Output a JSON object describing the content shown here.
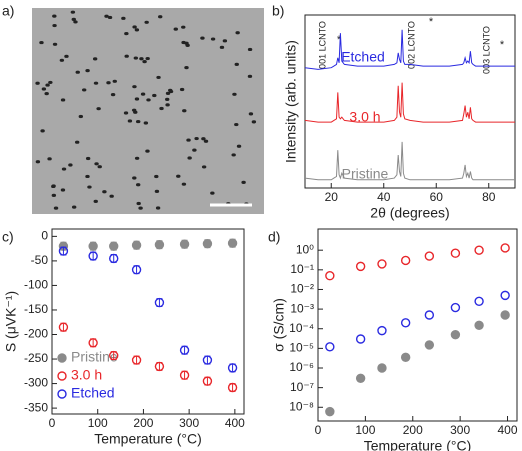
{
  "image_panel": {
    "label": "a)"
  },
  "chart_data": [
    {
      "type": "line",
      "label": "b)",
      "xlabel": "2θ (degrees)",
      "ylabel": "Intensity (arb. units)",
      "xlim": [
        10,
        90
      ],
      "ylim": [
        0,
        10.5
      ],
      "xticks": [
        20,
        40,
        60,
        80
      ],
      "annotations": [
        "001 LCNTO",
        "*",
        "002 LCNTO",
        "*",
        "003 LCNTO",
        "*"
      ],
      "x": [
        10,
        15,
        20,
        21,
        22,
        22.5,
        23,
        23.5,
        24,
        25,
        30,
        35,
        40,
        44,
        45,
        45.5,
        46,
        46.5,
        47,
        47.5,
        48,
        50,
        55,
        60,
        65,
        70,
        70.5,
        71,
        71.5,
        72,
        72.5,
        73,
        73.5,
        74,
        75,
        80,
        85,
        90
      ],
      "series": [
        {
          "name": "Etched",
          "color": "#2a2ae0",
          "values": [
            7.3,
            7.2,
            7.3,
            7.4,
            7.5,
            7.9,
            7.6,
            9.4,
            7.7,
            7.5,
            7.4,
            7.4,
            7.4,
            7.5,
            7.6,
            8.2,
            7.8,
            7.6,
            9.6,
            7.7,
            7.5,
            7.5,
            7.4,
            7.4,
            7.4,
            7.5,
            7.6,
            7.9,
            7.6,
            7.7,
            7.6,
            8.3,
            7.6,
            7.5,
            7.4,
            7.4,
            7.4,
            7.4
          ]
        },
        {
          "name": "3.0 h",
          "color": "#e8262a",
          "values": [
            4.1,
            4.0,
            4.0,
            4.1,
            4.2,
            5.8,
            4.3,
            4.2,
            4.3,
            4.1,
            4.0,
            4.0,
            4.0,
            4.1,
            4.3,
            6.2,
            4.6,
            4.3,
            6.4,
            4.5,
            4.2,
            4.1,
            4.0,
            4.0,
            4.0,
            4.1,
            4.5,
            5.0,
            4.3,
            4.6,
            4.2,
            4.9,
            4.2,
            4.1,
            4.0,
            4.0,
            4.0,
            4.0
          ]
        },
        {
          "name": "Pristine",
          "color": "#8a8a8a",
          "values": [
            0.6,
            0.5,
            0.5,
            0.6,
            0.7,
            2.3,
            0.8,
            0.6,
            0.9,
            0.6,
            0.5,
            0.5,
            0.5,
            0.6,
            0.8,
            2.0,
            1.0,
            0.7,
            2.8,
            0.9,
            0.6,
            0.5,
            0.5,
            0.5,
            0.5,
            0.6,
            0.9,
            1.4,
            0.7,
            0.9,
            0.6,
            1.0,
            0.6,
            0.5,
            0.5,
            0.5,
            0.5,
            0.5
          ]
        }
      ]
    },
    {
      "type": "scatter",
      "label": "c)",
      "xlabel": "Temperature (°C)",
      "ylabel": "S (μVK⁻¹)",
      "xlim": [
        0,
        420
      ],
      "ylim": [
        -362,
        15
      ],
      "xticks": [
        0,
        100,
        200,
        300,
        400
      ],
      "yticks": [
        0,
        -50,
        -100,
        -150,
        -200,
        -250,
        -300,
        -350
      ],
      "legend": "lower left",
      "x": [
        25,
        90,
        135,
        185,
        235,
        290,
        340,
        395
      ],
      "series": [
        {
          "name": "Pristine",
          "color": "#8a8a8a",
          "filled": true,
          "values": [
            -20,
            -20,
            -20,
            -18,
            -17,
            -16,
            -15,
            -14
          ],
          "errors": [
            8,
            8,
            8,
            8,
            8,
            8,
            8,
            8
          ]
        },
        {
          "name": "3.0 h",
          "color": "#e8262a",
          "filled": false,
          "values": [
            -185,
            -217,
            -243,
            -252,
            -265,
            -283,
            -295,
            -308
          ],
          "errors": [
            8,
            8,
            8,
            8,
            8,
            8,
            8,
            8
          ]
        },
        {
          "name": "Etched",
          "color": "#2a2ae0",
          "filled": false,
          "values": [
            -30,
            -40,
            -45,
            -68,
            -135,
            -232,
            -252,
            -268
          ],
          "errors": [
            8,
            8,
            8,
            8,
            8,
            8,
            8,
            8
          ]
        }
      ]
    },
    {
      "type": "scatter",
      "label": "d)",
      "xlabel": "Temperature (°C)",
      "ylabel": "σ (S/cm)",
      "log_y": true,
      "xlim": [
        0,
        420
      ],
      "ylim": [
        2e-09,
        12
      ],
      "xticks": [
        0,
        100,
        200,
        300,
        400
      ],
      "yticks": [
        {
          "value": 1,
          "label": "10⁰"
        },
        {
          "value": 0.1,
          "label": "10⁻¹"
        },
        {
          "value": 0.01,
          "label": "10⁻²"
        },
        {
          "value": 0.001,
          "label": "10⁻³"
        },
        {
          "value": 0.0001,
          "label": "10⁻⁴"
        },
        {
          "value": 1e-05,
          "label": "10⁻⁵"
        },
        {
          "value": 1e-06,
          "label": "10⁻⁶"
        },
        {
          "value": 1e-07,
          "label": "10⁻⁷"
        },
        {
          "value": 1e-08,
          "label": "10⁻⁸"
        }
      ],
      "x": [
        25,
        90,
        135,
        185,
        235,
        290,
        340,
        395
      ],
      "series": [
        {
          "color": "#8a8a8a",
          "filled": true,
          "values": [
            6e-09,
            3e-07,
            1e-06,
            3.5e-06,
            1.5e-05,
            5e-05,
            0.00015,
            0.0005
          ]
        },
        {
          "color": "#e8262a",
          "filled": false,
          "values": [
            0.05,
            0.15,
            0.2,
            0.3,
            0.5,
            0.7,
            1,
            1.3
          ]
        },
        {
          "color": "#2a2ae0",
          "filled": false,
          "values": [
            1.2e-05,
            3e-05,
            8e-05,
            0.0002,
            0.0005,
            0.0012,
            0.0025,
            0.005
          ]
        }
      ]
    }
  ]
}
